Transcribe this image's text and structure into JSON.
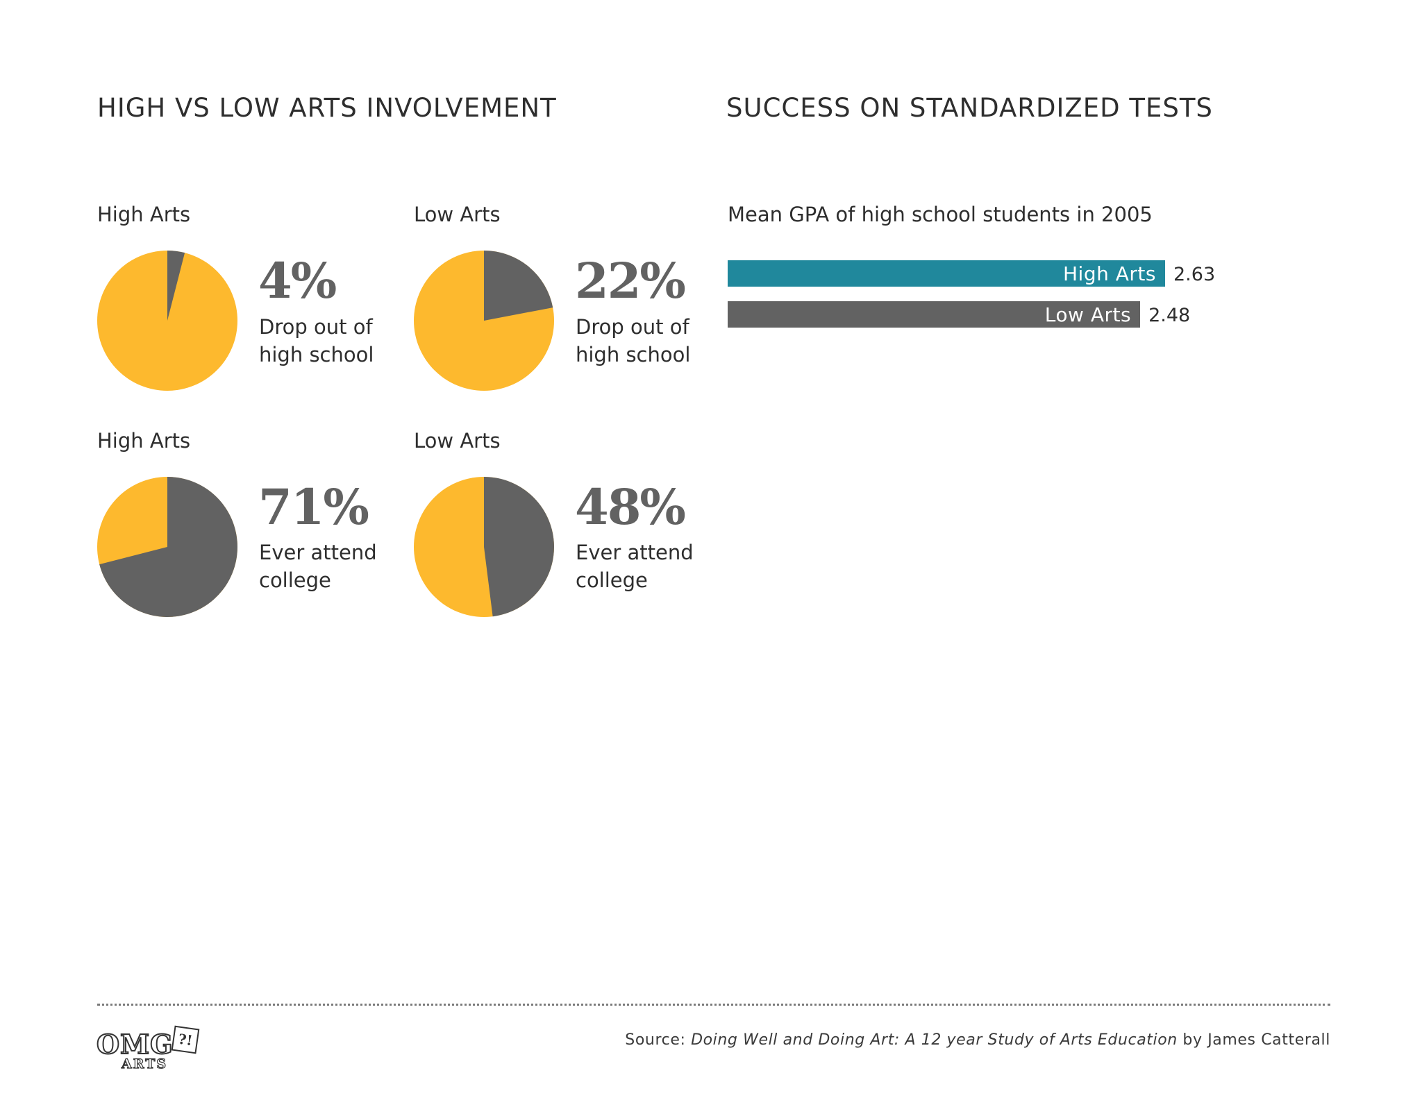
{
  "titles": {
    "left": "HIGH VS LOW ARTS INVOLVEMENT",
    "right": "SUCCESS ON STANDARDIZED TESTS"
  },
  "colors": {
    "yellow": "#FDB92E",
    "gray": "#626262",
    "teal": "#20889C"
  },
  "chart_data": [
    {
      "type": "pie",
      "title": "High Arts",
      "stat": "4%",
      "value": 4,
      "desc_line1": "Drop out of",
      "desc_line2": "high school"
    },
    {
      "type": "pie",
      "title": "Low Arts",
      "stat": "22%",
      "value": 22,
      "desc_line1": "Drop out of",
      "desc_line2": "high school"
    },
    {
      "type": "pie",
      "title": "High Arts",
      "stat": "71%",
      "value": 71,
      "desc_line1": "Ever attend",
      "desc_line2": "college"
    },
    {
      "type": "pie",
      "title": "Low Arts",
      "stat": "48%",
      "value": 48,
      "desc_line1": "Ever attend",
      "desc_line2": "college"
    },
    {
      "type": "bar",
      "title": "Mean GPA of high school students in 2005",
      "categories": [
        "High Arts",
        "Low Arts"
      ],
      "values": [
        2.63,
        2.48
      ],
      "value_labels": [
        "2.63",
        "2.48"
      ]
    }
  ],
  "footer": {
    "source_prefix": "Source: ",
    "source_title": "Doing Well and Doing Art: A 12 year Study of Arts Education",
    "source_suffix": " by James Catterall",
    "logo_main": "OMG",
    "logo_mark": "?!",
    "logo_sub": "ARTS"
  }
}
